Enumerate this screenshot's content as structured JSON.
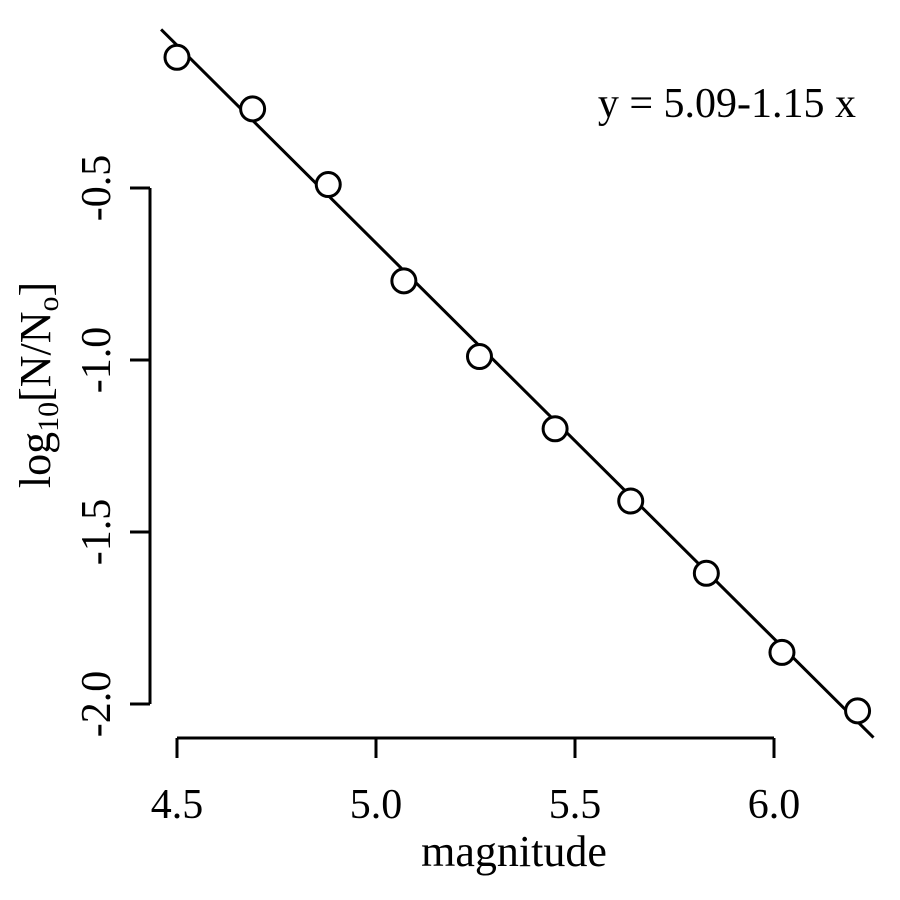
{
  "chart_data": {
    "type": "scatter",
    "title": "",
    "xlabel": "magnitude",
    "ylabel": {
      "prefix": "log",
      "subscript": "10",
      "body": "[N/N",
      "body_subscript": "o",
      "suffix": "]"
    },
    "annotation": "y = 5.09-1.15 x",
    "fit": {
      "intercept": 5.09,
      "slope": -1.15
    },
    "xlim": [
      4.5,
      6.2
    ],
    "ylim": [
      -2.0,
      0.0
    ],
    "x_ticks": [
      4.5,
      5.0,
      5.5,
      6.0
    ],
    "x_tick_labels": [
      "4.5",
      "5.0",
      "5.5",
      "6.0"
    ],
    "y_ticks": [
      -2.0,
      -1.5,
      -1.0,
      -0.5
    ],
    "y_tick_labels": [
      "-2.0",
      "-1.5",
      "-1.0",
      "-0.5"
    ],
    "grid": false,
    "series": [
      {
        "x": [
          4.5,
          4.69,
          4.88,
          5.07,
          5.26,
          5.45,
          5.64,
          5.83,
          6.02,
          6.21
        ],
        "y": [
          -0.12,
          -0.27,
          -0.49,
          -0.77,
          -0.99,
          -1.2,
          -1.41,
          -1.62,
          -1.85,
          -2.02
        ]
      }
    ]
  }
}
